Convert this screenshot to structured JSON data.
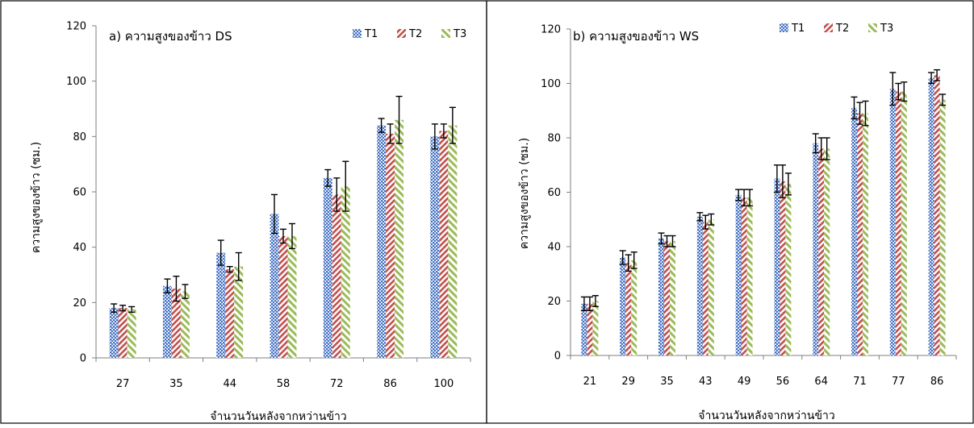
{
  "chart_data": [
    {
      "type": "bar",
      "title": "a) ความสูงของข้าว DS",
      "xlabel": "จำนวนวันหลังจากหว่านข้าว",
      "ylabel": "ความสูงของข้าว (ซม.)",
      "ylim": [
        0,
        120
      ],
      "yticks": [
        0,
        20,
        40,
        60,
        80,
        100,
        120
      ],
      "grid": false,
      "legend_position": "top-right",
      "categories": [
        "27",
        "35",
        "44",
        "58",
        "72",
        "86",
        "100"
      ],
      "series": [
        {
          "name": "T1",
          "color": "#4472C4",
          "pattern": "dots",
          "values": [
            18,
            26,
            38,
            52,
            65,
            84,
            80
          ],
          "errors": [
            1.5,
            2.5,
            4.5,
            7,
            3,
            2.5,
            4.5
          ]
        },
        {
          "name": "T2",
          "color": "#C0504D",
          "pattern": "diagonal",
          "values": [
            18,
            25,
            32,
            44,
            59,
            81,
            82
          ],
          "errors": [
            1,
            4.5,
            1,
            2.5,
            6,
            3.5,
            2.5
          ]
        },
        {
          "name": "T3",
          "color": "#9BBB59",
          "pattern": "stripes",
          "values": [
            17.5,
            24,
            33,
            44,
            62,
            86,
            84
          ],
          "errors": [
            1,
            2.5,
            5,
            4.5,
            9,
            8.5,
            6.5
          ]
        }
      ]
    },
    {
      "type": "bar",
      "title": "b) ความสูงของข้าว WS",
      "xlabel": "จำนวนวันหลังจากหว่านข้าว",
      "ylabel": "ความสูงของข้าว (ซม.)",
      "ylim": [
        0,
        120
      ],
      "yticks": [
        0,
        20,
        40,
        60,
        80,
        100,
        120
      ],
      "grid": false,
      "legend_position": "top-right",
      "categories": [
        "21",
        "29",
        "35",
        "43",
        "49",
        "56",
        "64",
        "71",
        "77",
        "86"
      ],
      "series": [
        {
          "name": "T1",
          "color": "#4472C4",
          "pattern": "dots",
          "values": [
            19,
            36,
            43,
            51,
            59,
            65,
            78,
            91,
            98,
            102
          ],
          "errors": [
            2.5,
            2.5,
            2,
            1.5,
            2,
            5,
            3.5,
            4,
            6,
            2
          ]
        },
        {
          "name": "T2",
          "color": "#C0504D",
          "pattern": "diagonal",
          "values": [
            19,
            34,
            42,
            49,
            58,
            64,
            76,
            89,
            97,
            103
          ],
          "errors": [
            2.5,
            3,
            2,
            2.5,
            3,
            6,
            4,
            4,
            3,
            2
          ]
        },
        {
          "name": "T3",
          "color": "#9BBB59",
          "pattern": "stripes",
          "values": [
            20,
            35,
            42,
            50,
            58,
            63,
            76,
            89,
            97,
            94
          ],
          "errors": [
            2,
            3,
            2,
            2,
            3,
            4,
            4,
            4.5,
            3.5,
            2
          ]
        }
      ]
    }
  ]
}
